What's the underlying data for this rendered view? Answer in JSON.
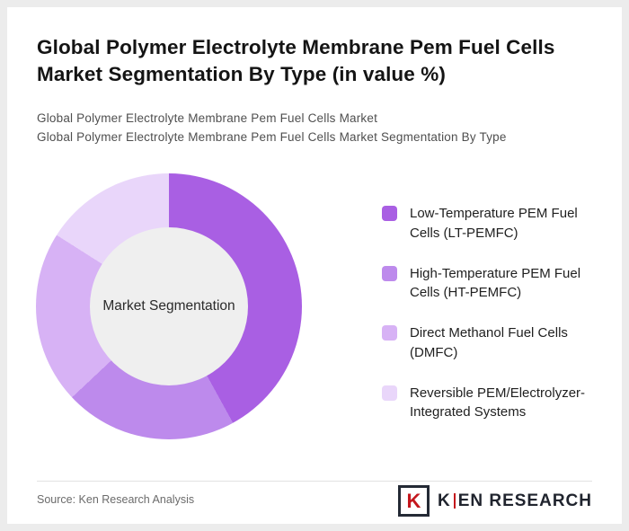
{
  "header": {
    "title": "Global Polymer Electrolyte Membrane Pem Fuel Cells Market Segmentation By Type (in value %)",
    "subtitle1": "Global Polymer Electrolyte Membrane Pem Fuel Cells Market",
    "subtitle2": "Global Polymer Electrolyte Membrane Pem Fuel Cells Market Segmentation By Type"
  },
  "chart_data": {
    "type": "pie",
    "variant": "donut",
    "title": "Global Polymer Electrolyte Membrane Pem Fuel Cells Market Segmentation By Type (in value %)",
    "center_label": "Market Segmentation",
    "legend_position": "right",
    "values_labeled_on_chart": false,
    "start_angle_deg": 0,
    "direction": "clockwise",
    "series": [
      {
        "label": "Low-Temperature PEM Fuel Cells (LT-PEMFC)",
        "value": 42,
        "color": "#a95fe3"
      },
      {
        "label": "High-Temperature PEM Fuel Cells (HT-PEMFC)",
        "value": 21,
        "color": "#bd8aec"
      },
      {
        "label": "Direct Methanol Fuel Cells (DMFC)",
        "value": 21,
        "color": "#d7b2f5"
      },
      {
        "label": "Reversible PEM/Electrolyzer-Integrated Systems",
        "value": 16,
        "color": "#e9d6fa"
      }
    ],
    "hole_color": "#efefef"
  },
  "footer": {
    "source": "Source: Ken Research Analysis",
    "brand": {
      "box_letter": "K",
      "name_first_letter": "K",
      "name_rest": "EN RESEARCH",
      "accent_color": "#c4161c"
    }
  }
}
